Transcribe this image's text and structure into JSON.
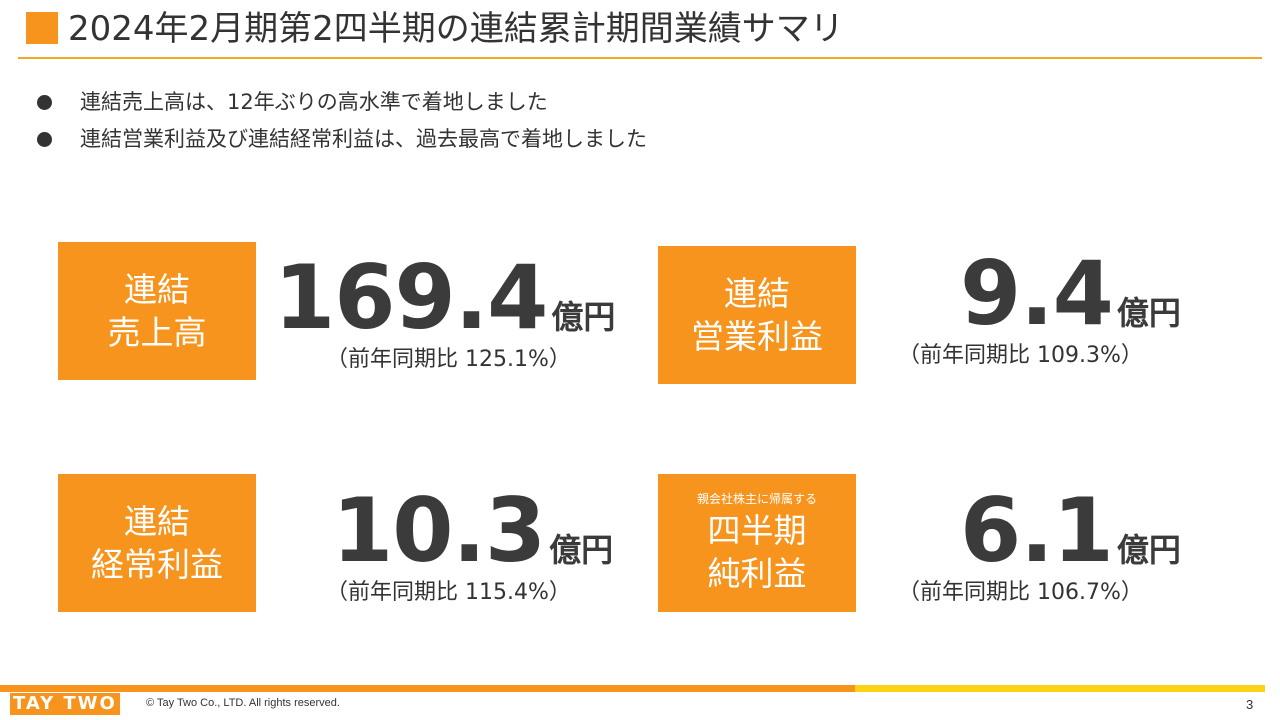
{
  "slide": {
    "title": "2024年2月期第2四半期の連結累計期間業績サマリ",
    "bullets": [
      "連結売上高は、12年ぶりの高水準で着地しました",
      "連結営業利益及び連結経常利益は、過去最高で着地しました"
    ]
  },
  "metrics": [
    {
      "label_lines": [
        "連結",
        "売上高"
      ],
      "value": "169.4",
      "unit": "億円",
      "yoy": "（前年同期比 125.1%）"
    },
    {
      "label_lines": [
        "連結",
        "営業利益"
      ],
      "value": "9.4",
      "unit": "億円",
      "yoy": "（前年同期比 109.3%）"
    },
    {
      "label_lines": [
        "連結",
        "経常利益"
      ],
      "value": "10.3",
      "unit": "億円",
      "yoy": "（前年同期比 115.4%）"
    },
    {
      "label_sub": "親会社株主に帰属する",
      "label_lines": [
        "四半期",
        "純利益"
      ],
      "value": "6.1",
      "unit": "億円",
      "yoy": "（前年同期比 106.7%）"
    }
  ],
  "footer": {
    "logo": "TAY TWO",
    "copyright": "© Tay Two Co., LTD. All rights reserved.",
    "page_number": "3"
  },
  "colors": {
    "accent_orange": "#f7941d",
    "accent_yellow": "#fcd116",
    "text": "#333333"
  }
}
